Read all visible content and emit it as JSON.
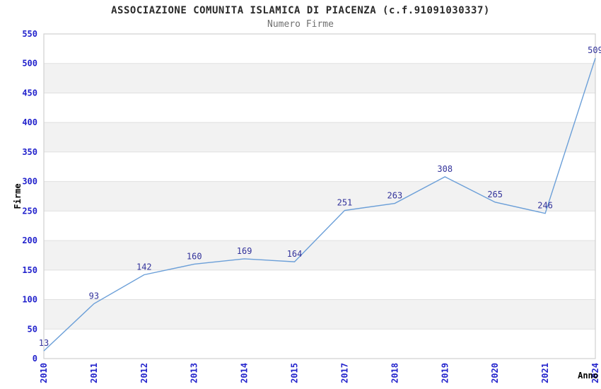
{
  "header": {
    "title": "ASSOCIAZIONE COMUNITA ISLAMICA DI PIACENZA (c.f.91091030337)",
    "subtitle": "Numero Firme"
  },
  "colors": {
    "title": "#2a2a2a",
    "subtitle": "#707070",
    "line": "#6b9fd8",
    "tick_label": "#2222cc",
    "data_label": "#33339b",
    "axis_title": "#000000",
    "band": "#f2f2f2",
    "grid": "#e0e0e0",
    "border": "#d0d0d0",
    "background": "#ffffff"
  },
  "chart_data": {
    "type": "line",
    "title": "ASSOCIAZIONE COMUNITA ISLAMICA DI PIACENZA (c.f.91091030337)",
    "subtitle": "Numero Firme",
    "categories": [
      "2010",
      "2011",
      "2012",
      "2013",
      "2014",
      "2015",
      "2017",
      "2018",
      "2019",
      "2020",
      "2021",
      "2024"
    ],
    "values": [
      13,
      93,
      142,
      160,
      169,
      164,
      251,
      263,
      308,
      265,
      246,
      509
    ],
    "xlabel": "Anno",
    "ylabel": "Firme",
    "ylim": [
      0,
      550
    ],
    "ytick_step": 50,
    "ytick_labels": [
      "0",
      "50",
      "100",
      "150",
      "200",
      "250",
      "300",
      "350",
      "400",
      "450",
      "500",
      "550"
    ],
    "grid": "horizontal",
    "banded_background": true,
    "legend": "none",
    "markers": "none",
    "data_labels_visible": true
  }
}
